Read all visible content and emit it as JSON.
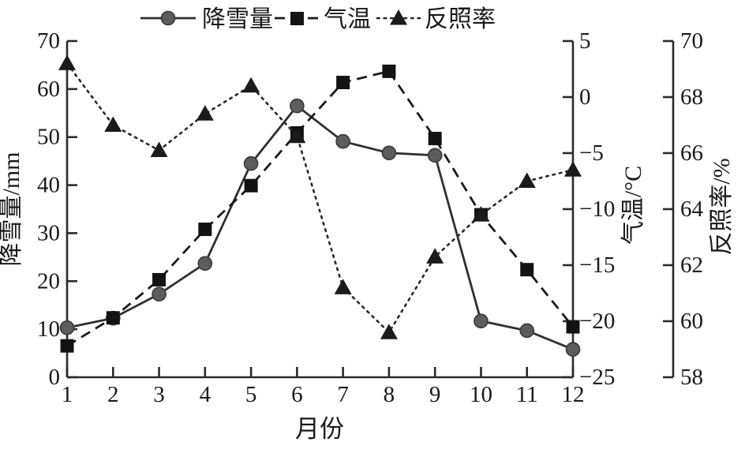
{
  "figure": {
    "background": "#ffffff",
    "text_color": "#1a1a1a",
    "line_color_snowfall": "#303030",
    "marker_color_snowfall": "#5d5d5d",
    "line_color_temperature": "#1b1b1b",
    "line_color_albedo": "#282828"
  },
  "legend": {
    "position": "top-center",
    "items": [
      {
        "label": "降雪量",
        "marker": "circle-marker-icon",
        "line_style": "solid"
      },
      {
        "label": "气温",
        "marker": "square-marker-icon",
        "line_style": "dashed"
      },
      {
        "label": "反照率",
        "marker": "triangle-marker-icon",
        "line_style": "dotted"
      }
    ]
  },
  "chart_data": {
    "type": "line",
    "x": [
      1,
      2,
      3,
      4,
      5,
      6,
      7,
      8,
      9,
      10,
      11,
      12
    ],
    "xlabel": "月份",
    "grid": false,
    "legend_position": "top-center",
    "series": [
      {
        "id": "snowfall",
        "name": "降雪量",
        "axis": "left",
        "line_style": "solid",
        "marker": "circle",
        "values": [
          10.3,
          12.3,
          17.3,
          23.7,
          44.5,
          56.5,
          49.1,
          46.7,
          46.2,
          11.7,
          9.7,
          5.8
        ]
      },
      {
        "id": "temperature",
        "name": "气温",
        "axis": "right_temp",
        "line_style": "dashed",
        "marker": "square",
        "values": [
          -22.2,
          -19.7,
          -16.3,
          -11.8,
          -7.9,
          -3.2,
          1.3,
          2.3,
          -3.7,
          -10.5,
          -15.4,
          -20.5
        ]
      },
      {
        "id": "albedo",
        "name": "反照率",
        "axis": "right_albedo",
        "line_style": "dotted",
        "marker": "triangle",
        "values": [
          69.2,
          67.0,
          66.1,
          67.4,
          68.4,
          66.6,
          61.2,
          59.6,
          62.3,
          63.8,
          65.0,
          65.4
        ]
      }
    ],
    "axes": {
      "x": {
        "label": "月份",
        "ticks": [
          1,
          2,
          3,
          4,
          5,
          6,
          7,
          8,
          9,
          10,
          11,
          12
        ],
        "range": [
          1,
          12
        ]
      },
      "left": {
        "label": "降雪量/mm",
        "ticks": [
          0,
          10,
          20,
          30,
          40,
          50,
          60,
          70
        ],
        "range": [
          0,
          70
        ]
      },
      "right_temp": {
        "label": "气温/°C",
        "ticks": [
          5,
          0,
          -5,
          -10,
          -15,
          -20,
          -25
        ],
        "range": [
          -25,
          5
        ]
      },
      "right_albedo": {
        "label": "反照率/%",
        "ticks": [
          70,
          68,
          66,
          64,
          62,
          60,
          58
        ],
        "range": [
          58,
          70
        ]
      }
    }
  }
}
